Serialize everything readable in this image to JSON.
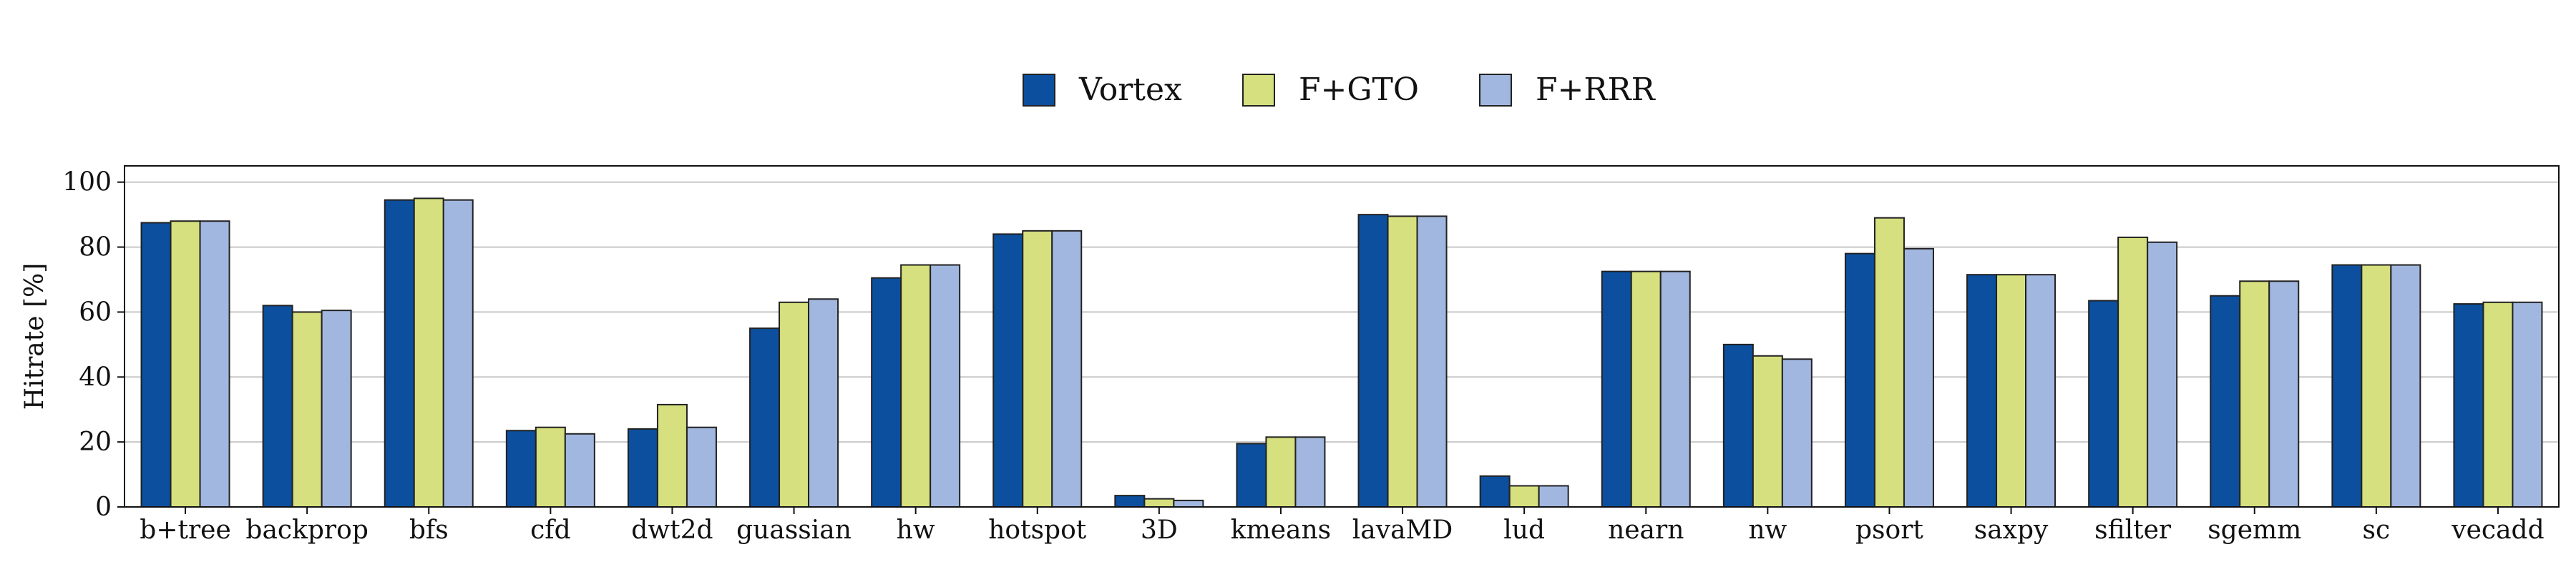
{
  "chart_data": {
    "type": "bar",
    "title": "",
    "xlabel": "",
    "ylabel": "Hitrate [%]",
    "ylim": [
      0,
      105
    ],
    "yticks": [
      0,
      20,
      40,
      60,
      80,
      100
    ],
    "grid": true,
    "legend_position": "top-center",
    "categories": [
      "b+tree",
      "backprop",
      "bfs",
      "cfd",
      "dwt2d",
      "guassian",
      "hw",
      "hotspot",
      "3D",
      "kmeans",
      "lavaMD",
      "lud",
      "nearn",
      "nw",
      "psort",
      "saxpy",
      "sfilter",
      "sgemm",
      "sc",
      "vecadd"
    ],
    "series": [
      {
        "name": "Vortex",
        "color": "#0b4f9e",
        "values": [
          87.5,
          62,
          94.5,
          23.5,
          24,
          55,
          70.5,
          84,
          3.5,
          19.5,
          90,
          9.5,
          72.5,
          50,
          78,
          71.5,
          63.5,
          65,
          74.5,
          62.5
        ]
      },
      {
        "name": "F+GTO",
        "color": "#d6e07e",
        "values": [
          88,
          60,
          95,
          24.5,
          31.5,
          63,
          74.5,
          85,
          2.5,
          21.5,
          89.5,
          6.5,
          72.5,
          46.5,
          89,
          71.5,
          83,
          69.5,
          74.5,
          63
        ]
      },
      {
        "name": "F+RRR",
        "color": "#a2b7df",
        "values": [
          88,
          60.5,
          94.5,
          22.5,
          24.5,
          64,
          74.5,
          85,
          2,
          21.5,
          89.5,
          6.5,
          72.5,
          45.5,
          79.5,
          71.5,
          81.5,
          69.5,
          74.5,
          63
        ]
      }
    ]
  }
}
